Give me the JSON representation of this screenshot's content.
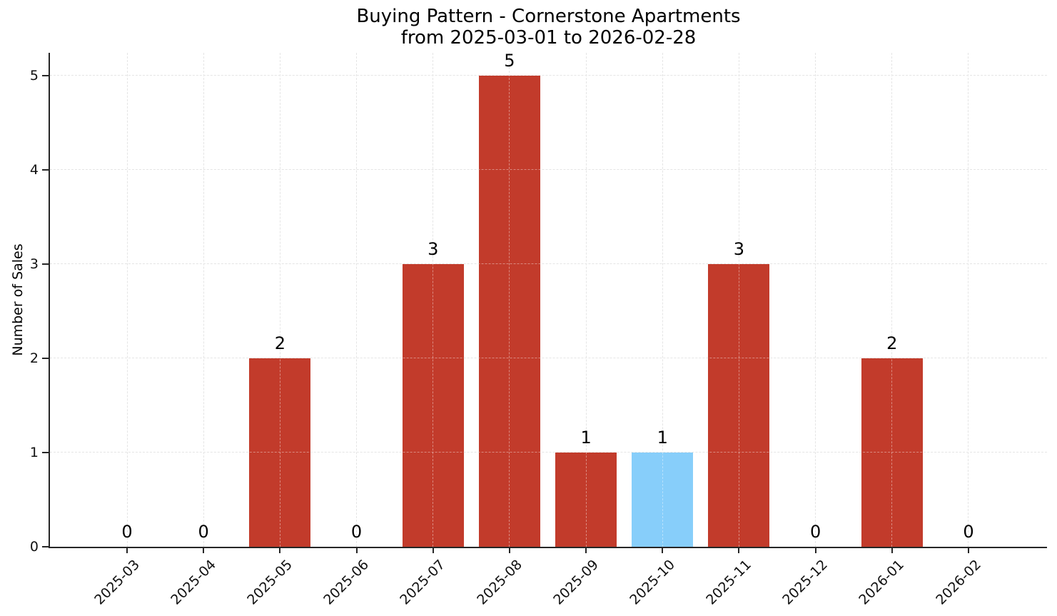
{
  "figure": {
    "background": "#ffffff"
  },
  "chart_data": {
    "type": "bar",
    "title": "Buying Pattern - Cornerstone Apartments",
    "subtitle": "from 2025-03-01 to 2026-02-28",
    "xlabel": "",
    "ylabel": "Number of Sales",
    "categories": [
      "2025-03",
      "2025-04",
      "2025-05",
      "2025-06",
      "2025-07",
      "2025-08",
      "2025-09",
      "2025-10",
      "2025-11",
      "2025-12",
      "2026-01",
      "2026-02"
    ],
    "values": [
      0,
      0,
      2,
      0,
      3,
      5,
      1,
      1,
      3,
      0,
      2,
      0
    ],
    "bar_value_labels": [
      "0",
      "0",
      "2",
      "0",
      "3",
      "5",
      "1",
      "1",
      "3",
      "0",
      "2",
      "0"
    ],
    "yticks": [
      0,
      1,
      2,
      3,
      4,
      5
    ],
    "ylim": [
      0,
      5.24
    ],
    "grid": true,
    "grid_style": "dashed",
    "legend_position": "none",
    "bar_color_default": "#c23b2b",
    "bar_color_highlight": "#87cefa",
    "highlight_index": 7,
    "highlight_category": "2025-10",
    "x_tick_rotation_deg": 45
  }
}
